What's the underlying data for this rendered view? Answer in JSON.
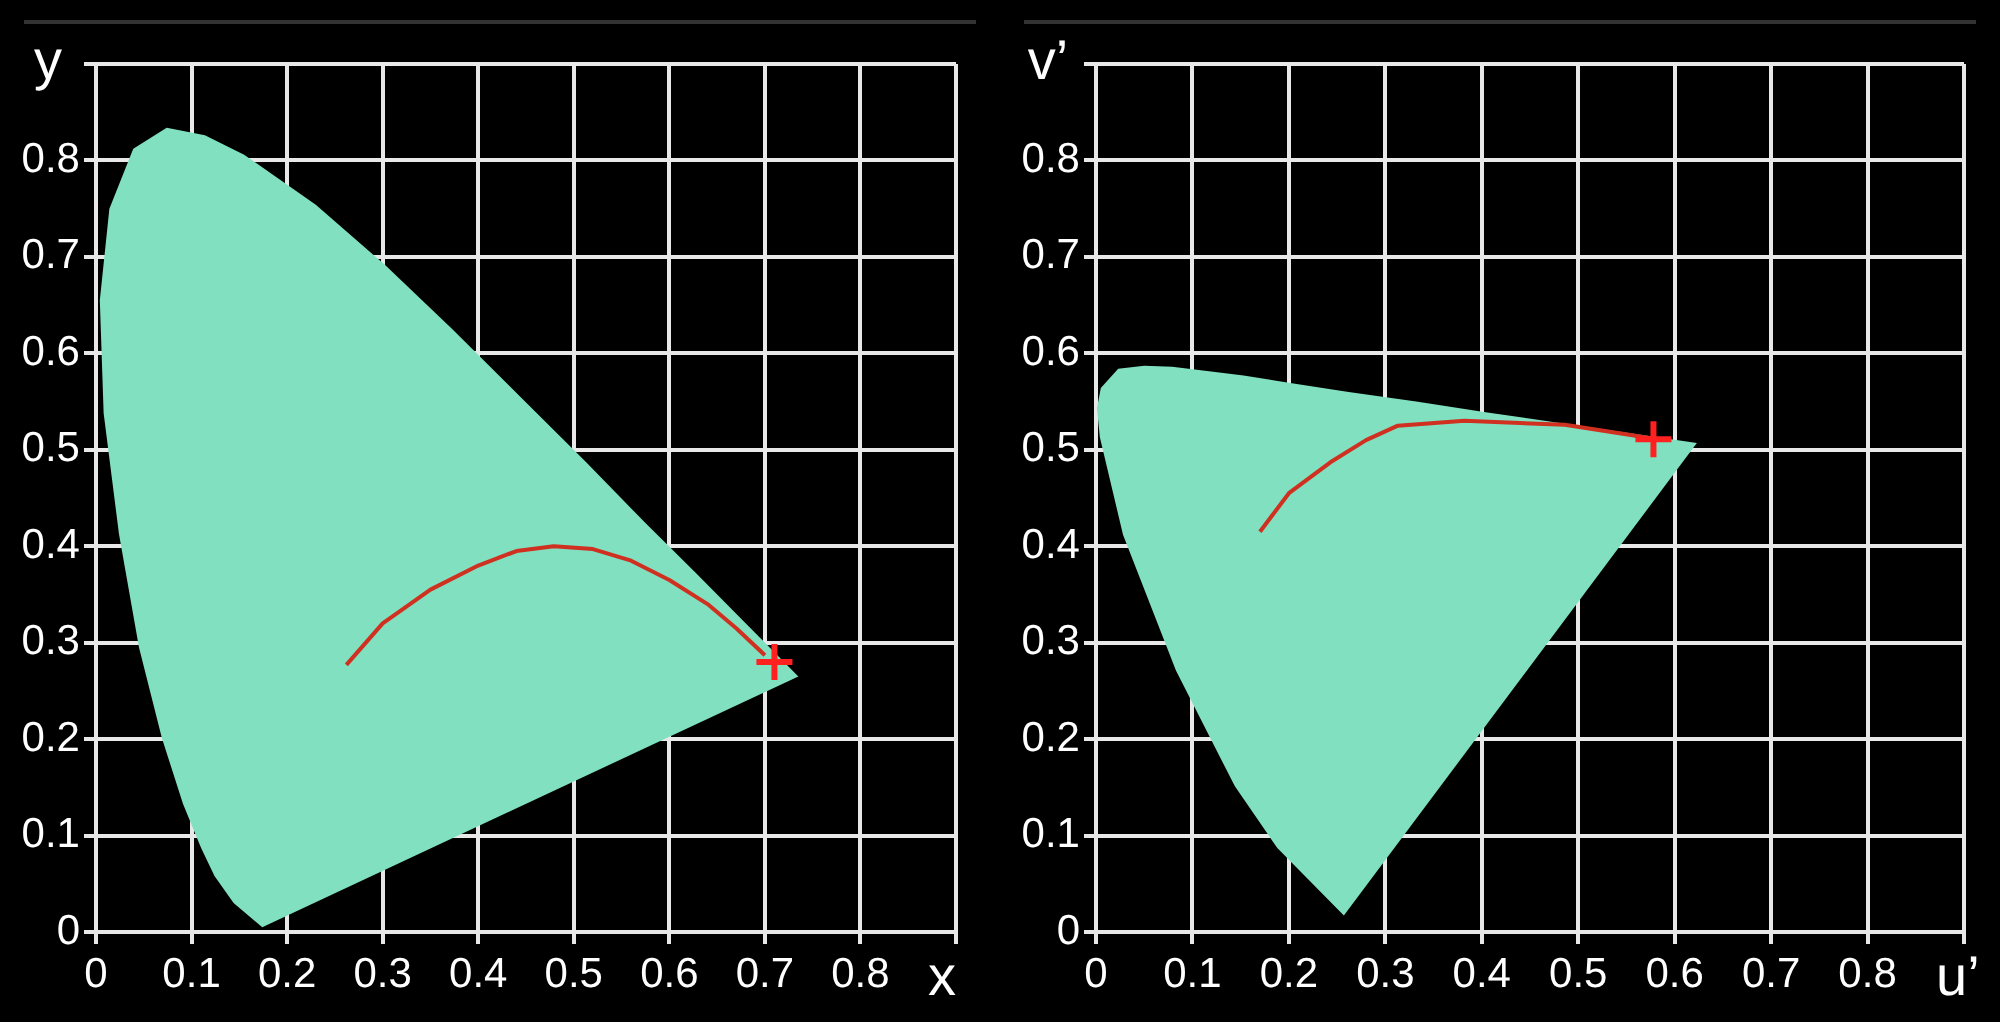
{
  "chart_data": [
    {
      "type": "line",
      "xlabel": "x",
      "ylabel": "y",
      "xlim": [
        0,
        0.9
      ],
      "ylim": [
        0,
        0.9
      ],
      "xticks": [
        0,
        0.1,
        0.2,
        0.3,
        0.4,
        0.5,
        0.6,
        0.7,
        0.8,
        {
          "value": 0.9,
          "label": null
        }
      ],
      "yticks": [
        0,
        0.1,
        0.2,
        0.3,
        0.4,
        0.5,
        0.6,
        0.7,
        0.8,
        {
          "value": 0.9,
          "label": null
        }
      ],
      "grid": true,
      "series": [
        {
          "type": "area",
          "color": "#80e0c0",
          "x": [
            0.174,
            0.144,
            0.124,
            0.11,
            0.091,
            0.069,
            0.045,
            0.024,
            0.008,
            0.004,
            0.014,
            0.039,
            0.074,
            0.114,
            0.155,
            0.23,
            0.302,
            0.373,
            0.444,
            0.513,
            0.575,
            0.627,
            0.692,
            0.719,
            0.735
          ],
          "values": [
            0.005,
            0.03,
            0.058,
            0.087,
            0.133,
            0.201,
            0.295,
            0.413,
            0.538,
            0.655,
            0.75,
            0.812,
            0.834,
            0.826,
            0.806,
            0.754,
            0.692,
            0.625,
            0.555,
            0.487,
            0.424,
            0.373,
            0.308,
            0.281,
            0.265
          ]
        },
        {
          "type": "line",
          "color": "#d03020",
          "x": [
            0.262,
            0.3,
            0.35,
            0.4,
            0.44,
            0.479,
            0.52,
            0.56,
            0.6,
            0.64,
            0.67,
            0.7
          ],
          "values": [
            0.277,
            0.32,
            0.355,
            0.38,
            0.395,
            0.4,
            0.397,
            0.385,
            0.365,
            0.34,
            0.315,
            0.287
          ]
        },
        {
          "type": "scatter",
          "color": "#ff2020",
          "marker": "cross",
          "x": [
            0.71
          ],
          "values": [
            0.28
          ]
        }
      ]
    },
    {
      "type": "line",
      "xlabel": "u’",
      "ylabel": "v’",
      "xlim": [
        0,
        0.9
      ],
      "ylim": [
        0,
        0.9
      ],
      "xticks": [
        0,
        0.1,
        0.2,
        0.3,
        0.4,
        0.5,
        0.6,
        0.7,
        0.8,
        {
          "value": 0.9,
          "label": null
        }
      ],
      "yticks": [
        0,
        0.1,
        0.2,
        0.3,
        0.4,
        0.5,
        0.6,
        0.7,
        0.8,
        {
          "value": 0.9,
          "label": null
        }
      ],
      "grid": true,
      "series": [
        {
          "type": "area",
          "color": "#80e0c0",
          "x": [
            0.257,
            0.188,
            0.144,
            0.083,
            0.028,
            0.004,
            0.001,
            0.005,
            0.023,
            0.05,
            0.079,
            0.113,
            0.153,
            0.203,
            0.262,
            0.332,
            0.404,
            0.52,
            0.623
          ],
          "values": [
            0.017,
            0.087,
            0.151,
            0.271,
            0.412,
            0.513,
            0.543,
            0.564,
            0.584,
            0.587,
            0.586,
            0.582,
            0.577,
            0.569,
            0.56,
            0.55,
            0.539,
            0.522,
            0.507
          ]
        },
        {
          "type": "line",
          "color": "#d03020",
          "x": [
            0.17,
            0.2,
            0.243,
            0.28,
            0.313,
            0.382,
            0.486,
            0.576
          ],
          "values": [
            0.415,
            0.455,
            0.487,
            0.51,
            0.525,
            0.53,
            0.526,
            0.512
          ]
        },
        {
          "type": "scatter",
          "color": "#ff2020",
          "marker": "cross",
          "x": [
            0.578
          ],
          "values": [
            0.511
          ]
        }
      ]
    }
  ]
}
